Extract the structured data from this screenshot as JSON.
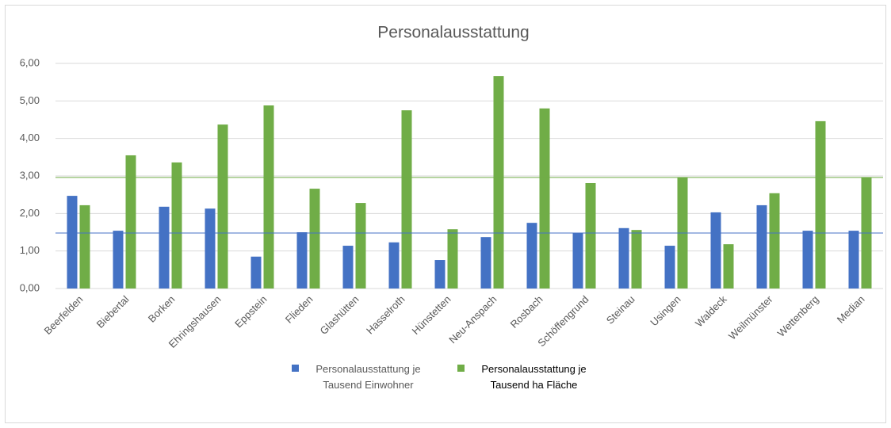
{
  "chart_data": {
    "type": "bar",
    "title": "Personalausstattung",
    "categories": [
      "Beerfelden",
      "Biebertal",
      "Borken",
      "Ehringshausen",
      "Eppstein",
      "Flieden",
      "Glashütten",
      "Hasselroth",
      "Hünstetten",
      "Neu-Anspach",
      "Rosbach",
      "Schöffengrund",
      "Steinau",
      "Usingen",
      "Waldeck",
      "Weilmünster",
      "Wettenberg",
      "Median"
    ],
    "series": [
      {
        "name": "Personalausstattung je Tausend Einwohner",
        "color": "#4472c4",
        "values": [
          2.47,
          1.54,
          2.18,
          2.13,
          0.85,
          1.5,
          1.14,
          1.23,
          0.76,
          1.37,
          1.75,
          1.48,
          1.61,
          1.14,
          2.03,
          2.22,
          1.54,
          1.54
        ]
      },
      {
        "name": "Personalausstattung je Tausend ha Fläche",
        "color": "#70ad47",
        "values": [
          2.22,
          3.55,
          3.36,
          4.37,
          4.88,
          2.66,
          2.28,
          4.75,
          1.58,
          5.66,
          4.8,
          2.81,
          1.56,
          2.96,
          1.18,
          2.54,
          4.46,
          2.96
        ]
      }
    ],
    "hlines": [
      {
        "value": 1.48,
        "color": "#4472c4"
      },
      {
        "value": 2.96,
        "color": "#70ad47"
      }
    ],
    "ylim": [
      0,
      6
    ],
    "yticks": [
      {
        "value": 0,
        "label": "0,00"
      },
      {
        "value": 1,
        "label": "1,00"
      },
      {
        "value": 2,
        "label": "2,00"
      },
      {
        "value": 3,
        "label": "3,00"
      },
      {
        "value": 4,
        "label": "4,00"
      },
      {
        "value": 5,
        "label": "5,00"
      },
      {
        "value": 6,
        "label": "6,00"
      }
    ],
    "grid": true,
    "legend": "bottom"
  }
}
